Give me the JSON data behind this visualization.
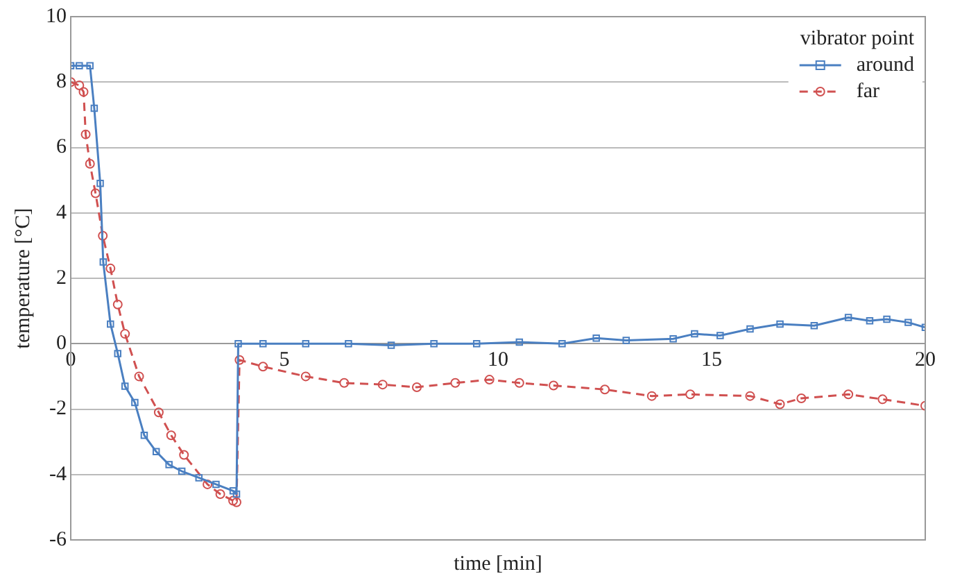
{
  "chart_data": {
    "type": "line",
    "xlabel": "time [min]",
    "ylabel": "temperature [°C]",
    "legend_title": "vibrator point",
    "xlim": [
      0,
      20
    ],
    "xticks": [
      0,
      5,
      10,
      15,
      20
    ],
    "ylim": [
      -6,
      10
    ],
    "yticks": [
      -6,
      -4,
      -2,
      0,
      2,
      4,
      6,
      8,
      10
    ],
    "grid": "y",
    "legend": "top right",
    "series": [
      {
        "name": "around",
        "color": "#4a7fc1",
        "marker": "square",
        "line_style": "solid",
        "x": [
          0,
          0.2,
          0.45,
          0.55,
          0.69,
          0.76,
          0.93,
          1.1,
          1.27,
          1.5,
          1.72,
          2.0,
          2.3,
          2.6,
          3.0,
          3.4,
          3.8,
          3.88,
          3.92,
          4.5,
          5.5,
          6.5,
          7.5,
          8.5,
          9.5,
          10.5,
          11.5,
          12.3,
          13.0,
          14.1,
          14.6,
          15.2,
          15.9,
          16.6,
          17.4,
          18.2,
          18.7,
          19.1,
          19.6,
          20
        ],
        "values": [
          8.5,
          8.5,
          8.5,
          7.2,
          4.9,
          2.5,
          0.6,
          -0.3,
          -1.3,
          -1.8,
          -2.8,
          -3.3,
          -3.7,
          -3.9,
          -4.1,
          -4.3,
          -4.5,
          -4.6,
          0,
          0,
          0,
          0,
          -0.05,
          0,
          0,
          0.05,
          0,
          0.17,
          0.1,
          0.15,
          0.3,
          0.25,
          0.45,
          0.6,
          0.55,
          0.8,
          0.7,
          0.75,
          0.65,
          0.5
        ]
      },
      {
        "name": "far",
        "color": "#d05050",
        "marker": "circle",
        "line_style": "dashed",
        "x": [
          0,
          0.2,
          0.3,
          0.35,
          0.45,
          0.58,
          0.75,
          0.93,
          1.1,
          1.27,
          1.6,
          2.06,
          2.35,
          2.65,
          3.2,
          3.5,
          3.8,
          3.88,
          3.95,
          4.5,
          5.5,
          6.4,
          7.3,
          8.1,
          9.0,
          9.8,
          10.5,
          11.3,
          12.5,
          13.6,
          14.5,
          15.9,
          16.6,
          17.1,
          18.2,
          19.0,
          20
        ],
        "values": [
          8.0,
          7.9,
          7.7,
          6.4,
          5.5,
          4.6,
          3.3,
          2.3,
          1.2,
          0.3,
          -1.0,
          -2.1,
          -2.8,
          -3.4,
          -4.3,
          -4.6,
          -4.8,
          -4.85,
          -0.5,
          -0.7,
          -1.0,
          -1.2,
          -1.25,
          -1.33,
          -1.2,
          -1.1,
          -1.2,
          -1.28,
          -1.4,
          -1.6,
          -1.55,
          -1.6,
          -1.85,
          -1.67,
          -1.55,
          -1.7,
          -1.9
        ]
      }
    ]
  }
}
